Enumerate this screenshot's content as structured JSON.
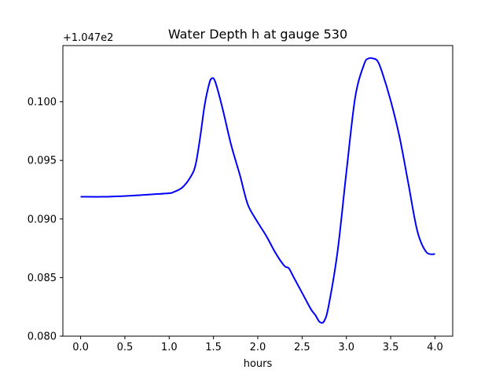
{
  "chart_data": {
    "type": "line",
    "title": "Water Depth h at gauge 530",
    "xlabel": "hours",
    "ylabel": "",
    "y_offset_label": "+1.047e2",
    "xlim": [
      -0.2,
      4.2
    ],
    "ylim": [
      0.08,
      0.1048
    ],
    "xticks": [
      0.0,
      0.5,
      1.0,
      1.5,
      2.0,
      2.5,
      3.0,
      3.5,
      4.0
    ],
    "xtick_labels": [
      "0.0",
      "0.5",
      "1.0",
      "1.5",
      "2.0",
      "2.5",
      "3.0",
      "3.5",
      "4.0"
    ],
    "yticks": [
      0.08,
      0.085,
      0.09,
      0.095,
      0.1
    ],
    "ytick_labels": [
      "0.080",
      "0.085",
      "0.090",
      "0.095",
      "0.100"
    ],
    "grid": false,
    "series": [
      {
        "color": "#0000ff",
        "x": [
          0.0,
          0.3,
          0.6,
          0.8,
          1.0,
          1.05,
          1.15,
          1.25,
          1.3,
          1.35,
          1.4,
          1.45,
          1.48,
          1.52,
          1.6,
          1.7,
          1.8,
          1.85,
          1.9,
          2.0,
          2.1,
          2.2,
          2.3,
          2.35,
          2.4,
          2.5,
          2.6,
          2.65,
          2.7,
          2.75,
          2.8,
          2.9,
          3.0,
          3.1,
          3.2,
          3.25,
          3.3,
          3.35,
          3.4,
          3.5,
          3.6,
          3.7,
          3.8,
          3.9,
          4.0
        ],
        "y": [
          0.0919,
          0.0919,
          0.092,
          0.0921,
          0.0922,
          0.0923,
          0.0927,
          0.0937,
          0.0947,
          0.097,
          0.0997,
          0.1015,
          0.102,
          0.1017,
          0.0995,
          0.0963,
          0.0937,
          0.0922,
          0.091,
          0.0897,
          0.0885,
          0.0871,
          0.086,
          0.0858,
          0.0851,
          0.0837,
          0.0823,
          0.0818,
          0.0812,
          0.0813,
          0.0826,
          0.0872,
          0.094,
          0.1004,
          0.1032,
          0.1037,
          0.1037,
          0.1035,
          0.1026,
          0.1001,
          0.097,
          0.093,
          0.089,
          0.0872,
          0.087
        ]
      }
    ]
  }
}
